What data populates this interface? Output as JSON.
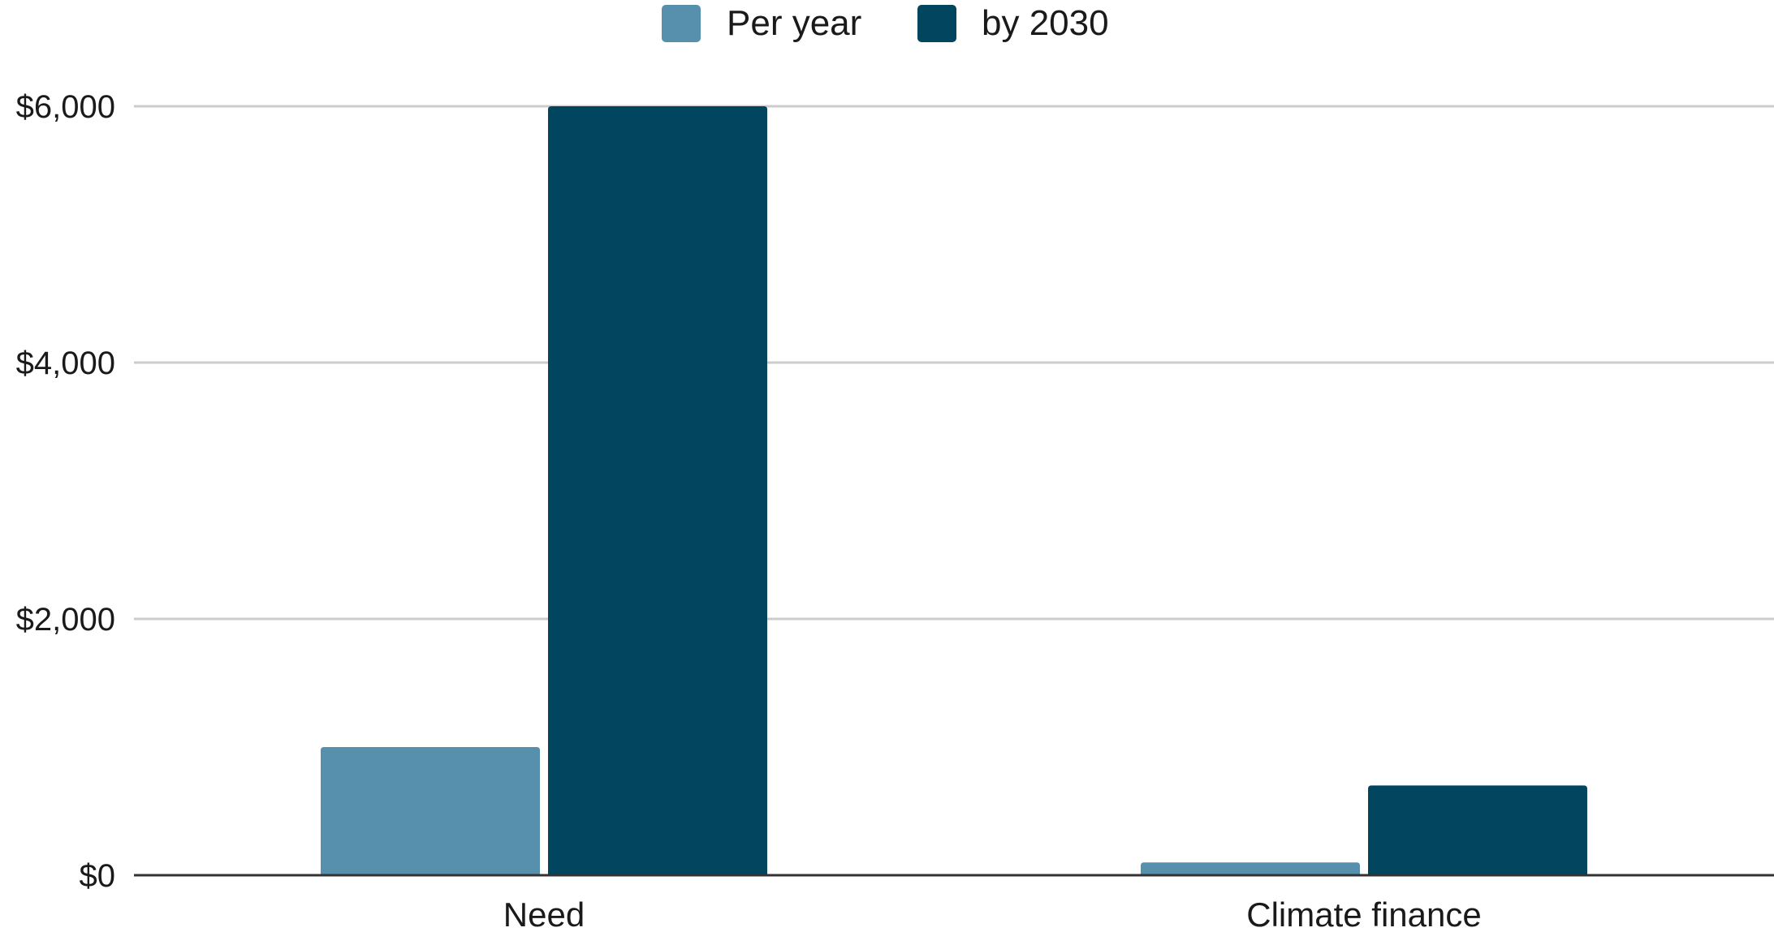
{
  "chart_data": {
    "type": "bar",
    "title": "",
    "xlabel": "",
    "ylabel": "",
    "categories": [
      "Need",
      "Climate finance"
    ],
    "series": [
      {
        "name": "Per year",
        "values": [
          1000,
          100
        ],
        "color": "#5790ad"
      },
      {
        "name": "by 2030",
        "values": [
          6000,
          700
        ],
        "color": "#02455f"
      }
    ],
    "ylim": [
      0,
      6000
    ],
    "y_ticks": [
      0,
      2000,
      4000,
      6000
    ],
    "y_tick_labels": [
      "$0",
      "$2,000",
      "$4,000",
      "$6,000"
    ],
    "grid": true,
    "legend_position": "top-center",
    "colors": {
      "gridline": "#cccccc",
      "baseline": "#333333",
      "text": "#1a1a1a"
    }
  }
}
